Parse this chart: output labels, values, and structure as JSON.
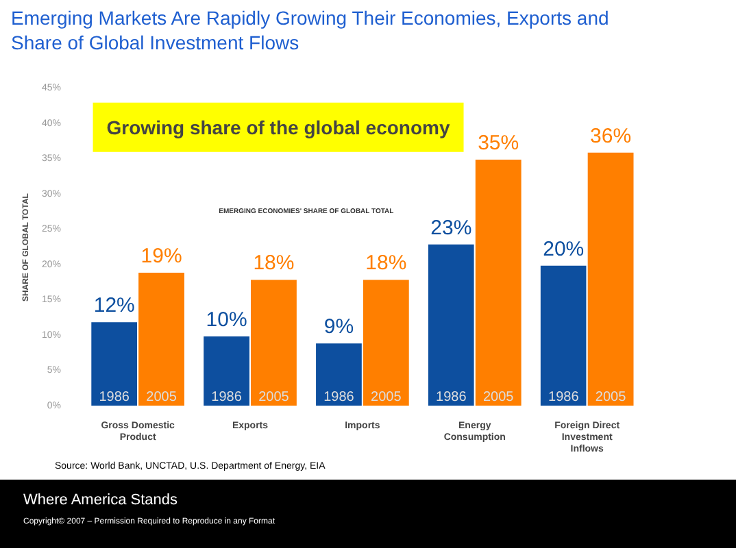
{
  "chart_data": {
    "type": "bar",
    "title": "Emerging Markets Are Rapidly Growing Their Economies, Exports and Share of Global Investment Flows",
    "subtitle": "Growing share of the global economy",
    "ylabel": "SHARE OF GLOBAL TOTAL",
    "annotations": [
      "EMERGING ECONOMIES' SHARE OF GLOBAL TOTAL",
      "Source: World Bank, UNCTAD, U.S. Department of Energy, EIA",
      "Where America Stands",
      "Copyright© 2007 – Permission Required to Reproduce in any Format"
    ],
    "categories": [
      "Gross Domestic Product",
      "Exports",
      "Imports",
      "Energy Consumption",
      "Foreign Direct Investment Inflows"
    ],
    "series": [
      {
        "name": "1986",
        "color": "#0d4f9f",
        "values": [
          12,
          10,
          9,
          23,
          20
        ],
        "value_labels": [
          "12%",
          "10%",
          "9%",
          "23%",
          "20%"
        ]
      },
      {
        "name": "2005",
        "color": "#ff7f00",
        "values": [
          19,
          18,
          18,
          35,
          36
        ],
        "value_labels": [
          "19%",
          "18%",
          "18%",
          "35%",
          "36%"
        ]
      }
    ],
    "ylim": [
      0,
      45
    ],
    "yticks": [
      {
        "value": 0,
        "label": "0%"
      },
      {
        "value": 5,
        "label": "5%"
      },
      {
        "value": 10,
        "label": "10%"
      },
      {
        "value": 15,
        "label": "15%"
      },
      {
        "value": 20,
        "label": "20%"
      },
      {
        "value": 25,
        "label": "25%"
      },
      {
        "value": 30,
        "label": "30%"
      },
      {
        "value": 35,
        "label": "35%"
      },
      {
        "value": 40,
        "label": "40%"
      },
      {
        "value": 45,
        "label": "45%"
      }
    ],
    "grid": false
  }
}
